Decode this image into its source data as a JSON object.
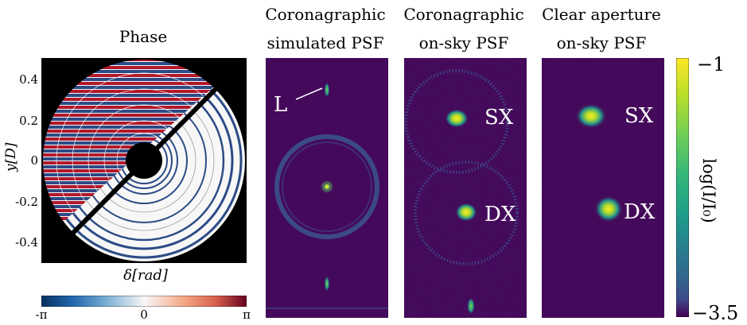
{
  "phase_panel": {
    "title": "Phase",
    "y_axis_label": "y[D]",
    "y_ticks": [
      "0.4",
      "0.2",
      "0",
      "-0.2",
      "-0.4"
    ],
    "x_axis_label": "δ[rad]",
    "colorbar_ticks": [
      "-π",
      "0",
      "π"
    ]
  },
  "psf_panels": [
    {
      "title_line1": "Coronagraphic",
      "title_line2": "simulated PSF",
      "annotation": "L"
    },
    {
      "title_line1": "Coronagraphic",
      "title_line2": "on-sky PSF",
      "label_top": "SX",
      "label_bottom": "DX"
    },
    {
      "title_line1": "Clear aperture",
      "title_line2": "on-sky PSF",
      "label_top": "SX",
      "label_bottom": "DX"
    }
  ],
  "intensity_colorbar": {
    "label": "log(I/I₀)",
    "max_label": "−1",
    "min_label": "−3.5"
  },
  "colors": {
    "psf_background": "#44095a",
    "viridis_yellow": "#fde725",
    "phase_red": "#b2182b",
    "phase_blue": "#2c4b86"
  }
}
